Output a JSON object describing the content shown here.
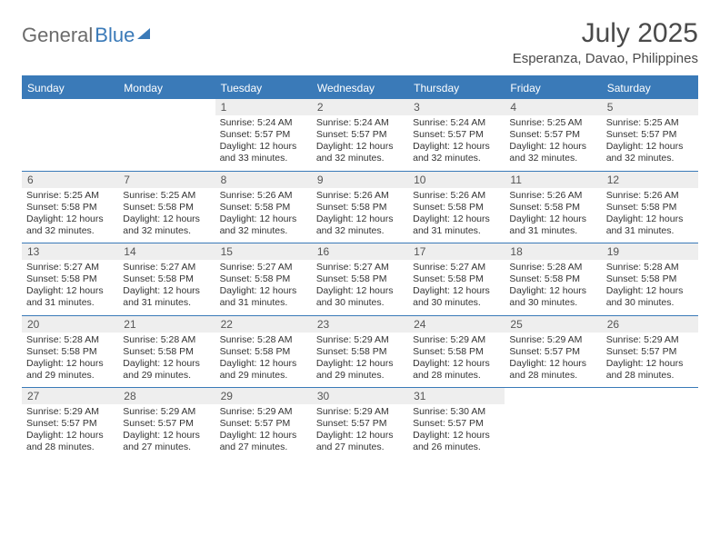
{
  "logo": {
    "part1": "General",
    "part2": "Blue"
  },
  "title": "July 2025",
  "location": "Esperanza, Davao, Philippines",
  "colors": {
    "accent": "#3a7ab8",
    "header_text": "#ffffff",
    "daynum_bg": "#eeeeee",
    "body_text": "#333333",
    "title_text": "#4a4a4a",
    "logo_gray": "#6b6b6b"
  },
  "day_headers": [
    "Sunday",
    "Monday",
    "Tuesday",
    "Wednesday",
    "Thursday",
    "Friday",
    "Saturday"
  ],
  "weeks": [
    [
      null,
      null,
      {
        "n": "1",
        "sr": "Sunrise: 5:24 AM",
        "ss": "Sunset: 5:57 PM",
        "d1": "Daylight: 12 hours",
        "d2": "and 33 minutes."
      },
      {
        "n": "2",
        "sr": "Sunrise: 5:24 AM",
        "ss": "Sunset: 5:57 PM",
        "d1": "Daylight: 12 hours",
        "d2": "and 32 minutes."
      },
      {
        "n": "3",
        "sr": "Sunrise: 5:24 AM",
        "ss": "Sunset: 5:57 PM",
        "d1": "Daylight: 12 hours",
        "d2": "and 32 minutes."
      },
      {
        "n": "4",
        "sr": "Sunrise: 5:25 AM",
        "ss": "Sunset: 5:57 PM",
        "d1": "Daylight: 12 hours",
        "d2": "and 32 minutes."
      },
      {
        "n": "5",
        "sr": "Sunrise: 5:25 AM",
        "ss": "Sunset: 5:57 PM",
        "d1": "Daylight: 12 hours",
        "d2": "and 32 minutes."
      }
    ],
    [
      {
        "n": "6",
        "sr": "Sunrise: 5:25 AM",
        "ss": "Sunset: 5:58 PM",
        "d1": "Daylight: 12 hours",
        "d2": "and 32 minutes."
      },
      {
        "n": "7",
        "sr": "Sunrise: 5:25 AM",
        "ss": "Sunset: 5:58 PM",
        "d1": "Daylight: 12 hours",
        "d2": "and 32 minutes."
      },
      {
        "n": "8",
        "sr": "Sunrise: 5:26 AM",
        "ss": "Sunset: 5:58 PM",
        "d1": "Daylight: 12 hours",
        "d2": "and 32 minutes."
      },
      {
        "n": "9",
        "sr": "Sunrise: 5:26 AM",
        "ss": "Sunset: 5:58 PM",
        "d1": "Daylight: 12 hours",
        "d2": "and 32 minutes."
      },
      {
        "n": "10",
        "sr": "Sunrise: 5:26 AM",
        "ss": "Sunset: 5:58 PM",
        "d1": "Daylight: 12 hours",
        "d2": "and 31 minutes."
      },
      {
        "n": "11",
        "sr": "Sunrise: 5:26 AM",
        "ss": "Sunset: 5:58 PM",
        "d1": "Daylight: 12 hours",
        "d2": "and 31 minutes."
      },
      {
        "n": "12",
        "sr": "Sunrise: 5:26 AM",
        "ss": "Sunset: 5:58 PM",
        "d1": "Daylight: 12 hours",
        "d2": "and 31 minutes."
      }
    ],
    [
      {
        "n": "13",
        "sr": "Sunrise: 5:27 AM",
        "ss": "Sunset: 5:58 PM",
        "d1": "Daylight: 12 hours",
        "d2": "and 31 minutes."
      },
      {
        "n": "14",
        "sr": "Sunrise: 5:27 AM",
        "ss": "Sunset: 5:58 PM",
        "d1": "Daylight: 12 hours",
        "d2": "and 31 minutes."
      },
      {
        "n": "15",
        "sr": "Sunrise: 5:27 AM",
        "ss": "Sunset: 5:58 PM",
        "d1": "Daylight: 12 hours",
        "d2": "and 31 minutes."
      },
      {
        "n": "16",
        "sr": "Sunrise: 5:27 AM",
        "ss": "Sunset: 5:58 PM",
        "d1": "Daylight: 12 hours",
        "d2": "and 30 minutes."
      },
      {
        "n": "17",
        "sr": "Sunrise: 5:27 AM",
        "ss": "Sunset: 5:58 PM",
        "d1": "Daylight: 12 hours",
        "d2": "and 30 minutes."
      },
      {
        "n": "18",
        "sr": "Sunrise: 5:28 AM",
        "ss": "Sunset: 5:58 PM",
        "d1": "Daylight: 12 hours",
        "d2": "and 30 minutes."
      },
      {
        "n": "19",
        "sr": "Sunrise: 5:28 AM",
        "ss": "Sunset: 5:58 PM",
        "d1": "Daylight: 12 hours",
        "d2": "and 30 minutes."
      }
    ],
    [
      {
        "n": "20",
        "sr": "Sunrise: 5:28 AM",
        "ss": "Sunset: 5:58 PM",
        "d1": "Daylight: 12 hours",
        "d2": "and 29 minutes."
      },
      {
        "n": "21",
        "sr": "Sunrise: 5:28 AM",
        "ss": "Sunset: 5:58 PM",
        "d1": "Daylight: 12 hours",
        "d2": "and 29 minutes."
      },
      {
        "n": "22",
        "sr": "Sunrise: 5:28 AM",
        "ss": "Sunset: 5:58 PM",
        "d1": "Daylight: 12 hours",
        "d2": "and 29 minutes."
      },
      {
        "n": "23",
        "sr": "Sunrise: 5:29 AM",
        "ss": "Sunset: 5:58 PM",
        "d1": "Daylight: 12 hours",
        "d2": "and 29 minutes."
      },
      {
        "n": "24",
        "sr": "Sunrise: 5:29 AM",
        "ss": "Sunset: 5:58 PM",
        "d1": "Daylight: 12 hours",
        "d2": "and 28 minutes."
      },
      {
        "n": "25",
        "sr": "Sunrise: 5:29 AM",
        "ss": "Sunset: 5:57 PM",
        "d1": "Daylight: 12 hours",
        "d2": "and 28 minutes."
      },
      {
        "n": "26",
        "sr": "Sunrise: 5:29 AM",
        "ss": "Sunset: 5:57 PM",
        "d1": "Daylight: 12 hours",
        "d2": "and 28 minutes."
      }
    ],
    [
      {
        "n": "27",
        "sr": "Sunrise: 5:29 AM",
        "ss": "Sunset: 5:57 PM",
        "d1": "Daylight: 12 hours",
        "d2": "and 28 minutes."
      },
      {
        "n": "28",
        "sr": "Sunrise: 5:29 AM",
        "ss": "Sunset: 5:57 PM",
        "d1": "Daylight: 12 hours",
        "d2": "and 27 minutes."
      },
      {
        "n": "29",
        "sr": "Sunrise: 5:29 AM",
        "ss": "Sunset: 5:57 PM",
        "d1": "Daylight: 12 hours",
        "d2": "and 27 minutes."
      },
      {
        "n": "30",
        "sr": "Sunrise: 5:29 AM",
        "ss": "Sunset: 5:57 PM",
        "d1": "Daylight: 12 hours",
        "d2": "and 27 minutes."
      },
      {
        "n": "31",
        "sr": "Sunrise: 5:30 AM",
        "ss": "Sunset: 5:57 PM",
        "d1": "Daylight: 12 hours",
        "d2": "and 26 minutes."
      },
      null,
      null
    ]
  ]
}
